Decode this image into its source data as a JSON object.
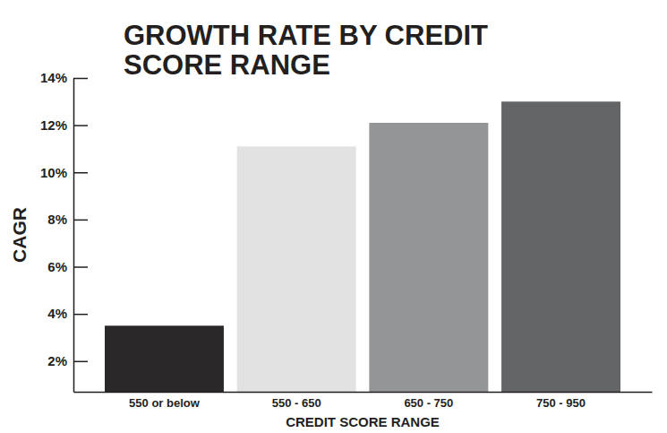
{
  "chart_data": {
    "type": "bar",
    "title": "GROWTH RATE BY CREDIT SCORE RANGE",
    "x_label": "CREDIT SCORE RANGE",
    "y_label": "CAGR",
    "categories": [
      "550 or below",
      "550 - 650",
      "650 - 750",
      "750 - 950"
    ],
    "values": [
      3.5,
      11.1,
      12.1,
      13.0
    ],
    "colors": [
      "#2b2829",
      "#e2e2e2",
      "#949597",
      "#646566"
    ],
    "ylim": [
      0.7,
      14
    ],
    "yticks": [
      {
        "value": 2,
        "label": "2%"
      },
      {
        "value": 4,
        "label": "4%"
      },
      {
        "value": 6,
        "label": "6%"
      },
      {
        "value": 8,
        "label": "8%"
      },
      {
        "value": 10,
        "label": "10%"
      },
      {
        "value": 12,
        "label": "12%"
      },
      {
        "value": 14,
        "label": "14%"
      }
    ],
    "grid": false
  }
}
